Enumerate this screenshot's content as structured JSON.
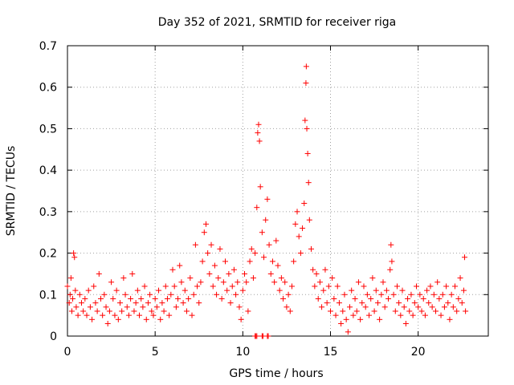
{
  "chart_data": {
    "type": "scatter",
    "title": "Day 352 of 2021, SRMTID for receiver riga",
    "xlabel": "GPS time / hours",
    "ylabel": "SRMTID / TECUs",
    "xlim": [
      0,
      24
    ],
    "ylim": [
      0,
      0.7
    ],
    "xticks": [
      0,
      5,
      10,
      15,
      20
    ],
    "yticks": [
      0,
      0.1,
      0.2,
      0.3,
      0.4,
      0.5,
      0.6,
      0.7
    ],
    "xtick_labels": [
      "0",
      "5",
      "10",
      "15",
      "20"
    ],
    "ytick_labels": [
      "0",
      "0.1",
      "0.2",
      "0.3",
      "0.4",
      "0.5",
      "0.6",
      "0.7"
    ],
    "grid": true,
    "marker": "+",
    "color": "#ff0000",
    "series": [
      {
        "name": "SRMTID",
        "points": [
          [
            0.0,
            0.12
          ],
          [
            0.1,
            0.08
          ],
          [
            0.15,
            0.1
          ],
          [
            0.2,
            0.14
          ],
          [
            0.25,
            0.06
          ],
          [
            0.3,
            0.09
          ],
          [
            0.35,
            0.2
          ],
          [
            0.4,
            0.19
          ],
          [
            0.45,
            0.11
          ],
          [
            0.5,
            0.07
          ],
          [
            0.6,
            0.05
          ],
          [
            0.7,
            0.1
          ],
          [
            0.8,
            0.08
          ],
          [
            0.9,
            0.06
          ],
          [
            1.0,
            0.09
          ],
          [
            1.1,
            0.05
          ],
          [
            1.2,
            0.11
          ],
          [
            1.3,
            0.07
          ],
          [
            1.4,
            0.04
          ],
          [
            1.5,
            0.12
          ],
          [
            1.6,
            0.08
          ],
          [
            1.7,
            0.06
          ],
          [
            1.8,
            0.15
          ],
          [
            1.9,
            0.09
          ],
          [
            2.0,
            0.05
          ],
          [
            2.1,
            0.1
          ],
          [
            2.2,
            0.07
          ],
          [
            2.3,
            0.03
          ],
          [
            2.4,
            0.06
          ],
          [
            2.5,
            0.13
          ],
          [
            2.6,
            0.09
          ],
          [
            2.7,
            0.05
          ],
          [
            2.8,
            0.11
          ],
          [
            2.9,
            0.04
          ],
          [
            3.0,
            0.08
          ],
          [
            3.1,
            0.06
          ],
          [
            3.2,
            0.14
          ],
          [
            3.3,
            0.1
          ],
          [
            3.4,
            0.07
          ],
          [
            3.5,
            0.05
          ],
          [
            3.6,
            0.09
          ],
          [
            3.7,
            0.15
          ],
          [
            3.8,
            0.06
          ],
          [
            3.9,
            0.08
          ],
          [
            4.0,
            0.11
          ],
          [
            4.1,
            0.05
          ],
          [
            4.2,
            0.09
          ],
          [
            4.3,
            0.07
          ],
          [
            4.4,
            0.12
          ],
          [
            4.5,
            0.04
          ],
          [
            4.6,
            0.08
          ],
          [
            4.7,
            0.1
          ],
          [
            4.8,
            0.06
          ],
          [
            4.9,
            0.05
          ],
          [
            5.0,
            0.09
          ],
          [
            5.1,
            0.07
          ],
          [
            5.2,
            0.11
          ],
          [
            5.3,
            0.04
          ],
          [
            5.4,
            0.08
          ],
          [
            5.5,
            0.06
          ],
          [
            5.6,
            0.12
          ],
          [
            5.7,
            0.09
          ],
          [
            5.8,
            0.05
          ],
          [
            5.9,
            0.1
          ],
          [
            6.0,
            0.16
          ],
          [
            6.1,
            0.12
          ],
          [
            6.2,
            0.07
          ],
          [
            6.3,
            0.09
          ],
          [
            6.4,
            0.17
          ],
          [
            6.5,
            0.13
          ],
          [
            6.6,
            0.08
          ],
          [
            6.7,
            0.11
          ],
          [
            6.8,
            0.06
          ],
          [
            6.9,
            0.09
          ],
          [
            7.0,
            0.14
          ],
          [
            7.1,
            0.05
          ],
          [
            7.2,
            0.1
          ],
          [
            7.3,
            0.22
          ],
          [
            7.4,
            0.12
          ],
          [
            7.5,
            0.08
          ],
          [
            7.6,
            0.13
          ],
          [
            7.7,
            0.18
          ],
          [
            7.8,
            0.25
          ],
          [
            7.9,
            0.27
          ],
          [
            8.0,
            0.2
          ],
          [
            8.1,
            0.15
          ],
          [
            8.2,
            0.22
          ],
          [
            8.3,
            0.12
          ],
          [
            8.4,
            0.17
          ],
          [
            8.5,
            0.1
          ],
          [
            8.6,
            0.14
          ],
          [
            8.7,
            0.21
          ],
          [
            8.8,
            0.09
          ],
          [
            8.9,
            0.13
          ],
          [
            9.0,
            0.18
          ],
          [
            9.1,
            0.11
          ],
          [
            9.2,
            0.15
          ],
          [
            9.3,
            0.08
          ],
          [
            9.4,
            0.12
          ],
          [
            9.5,
            0.16
          ],
          [
            9.6,
            0.1
          ],
          [
            9.7,
            0.13
          ],
          [
            9.8,
            0.07
          ],
          [
            9.9,
            0.04
          ],
          [
            10.0,
            0.11
          ],
          [
            10.1,
            0.15
          ],
          [
            10.2,
            0.13
          ],
          [
            10.3,
            0.06
          ],
          [
            10.4,
            0.18
          ],
          [
            10.5,
            0.21
          ],
          [
            10.6,
            0.14
          ],
          [
            10.7,
            0.2
          ],
          [
            10.8,
            0.31
          ],
          [
            10.85,
            0.49
          ],
          [
            10.9,
            0.51
          ],
          [
            10.95,
            0.47
          ],
          [
            11.0,
            0.36
          ],
          [
            11.1,
            0.25
          ],
          [
            11.2,
            0.19
          ],
          [
            11.3,
            0.28
          ],
          [
            11.4,
            0.33
          ],
          [
            11.5,
            0.22
          ],
          [
            11.6,
            0.15
          ],
          [
            11.7,
            0.18
          ],
          [
            11.8,
            0.13
          ],
          [
            11.9,
            0.23
          ],
          [
            12.0,
            0.17
          ],
          [
            12.1,
            0.11
          ],
          [
            12.2,
            0.14
          ],
          [
            12.3,
            0.09
          ],
          [
            12.4,
            0.13
          ],
          [
            12.5,
            0.07
          ],
          [
            12.6,
            0.1
          ],
          [
            12.7,
            0.06
          ],
          [
            12.8,
            0.12
          ],
          [
            12.9,
            0.18
          ],
          [
            13.0,
            0.27
          ],
          [
            13.1,
            0.3
          ],
          [
            13.2,
            0.24
          ],
          [
            13.3,
            0.2
          ],
          [
            13.4,
            0.26
          ],
          [
            13.5,
            0.32
          ],
          [
            13.55,
            0.52
          ],
          [
            13.6,
            0.61
          ],
          [
            13.62,
            0.65
          ],
          [
            13.65,
            0.5
          ],
          [
            13.7,
            0.44
          ],
          [
            13.75,
            0.37
          ],
          [
            13.8,
            0.28
          ],
          [
            13.9,
            0.21
          ],
          [
            14.0,
            0.16
          ],
          [
            14.1,
            0.12
          ],
          [
            14.2,
            0.15
          ],
          [
            14.3,
            0.09
          ],
          [
            14.4,
            0.13
          ],
          [
            14.5,
            0.07
          ],
          [
            14.6,
            0.11
          ],
          [
            14.7,
            0.16
          ],
          [
            14.8,
            0.08
          ],
          [
            14.9,
            0.12
          ],
          [
            15.0,
            0.06
          ],
          [
            15.1,
            0.14
          ],
          [
            15.2,
            0.09
          ],
          [
            15.3,
            0.05
          ],
          [
            15.4,
            0.12
          ],
          [
            15.5,
            0.08
          ],
          [
            15.6,
            0.03
          ],
          [
            15.7,
            0.06
          ],
          [
            15.8,
            0.1
          ],
          [
            15.9,
            0.04
          ],
          [
            16.0,
            0.01
          ],
          [
            16.1,
            0.07
          ],
          [
            16.2,
            0.11
          ],
          [
            16.3,
            0.05
          ],
          [
            16.4,
            0.09
          ],
          [
            16.5,
            0.06
          ],
          [
            16.6,
            0.13
          ],
          [
            16.7,
            0.04
          ],
          [
            16.8,
            0.08
          ],
          [
            16.9,
            0.12
          ],
          [
            17.0,
            0.07
          ],
          [
            17.1,
            0.1
          ],
          [
            17.2,
            0.05
          ],
          [
            17.3,
            0.09
          ],
          [
            17.4,
            0.14
          ],
          [
            17.5,
            0.06
          ],
          [
            17.6,
            0.11
          ],
          [
            17.7,
            0.08
          ],
          [
            17.8,
            0.04
          ],
          [
            17.9,
            0.1
          ],
          [
            18.0,
            0.13
          ],
          [
            18.1,
            0.07
          ],
          [
            18.2,
            0.11
          ],
          [
            18.3,
            0.09
          ],
          [
            18.4,
            0.16
          ],
          [
            18.45,
            0.22
          ],
          [
            18.5,
            0.18
          ],
          [
            18.6,
            0.1
          ],
          [
            18.7,
            0.06
          ],
          [
            18.8,
            0.12
          ],
          [
            18.9,
            0.08
          ],
          [
            19.0,
            0.05
          ],
          [
            19.1,
            0.11
          ],
          [
            19.2,
            0.07
          ],
          [
            19.3,
            0.03
          ],
          [
            19.4,
            0.09
          ],
          [
            19.5,
            0.06
          ],
          [
            19.6,
            0.1
          ],
          [
            19.7,
            0.05
          ],
          [
            19.8,
            0.08
          ],
          [
            19.9,
            0.12
          ],
          [
            20.0,
            0.07
          ],
          [
            20.1,
            0.1
          ],
          [
            20.2,
            0.06
          ],
          [
            20.3,
            0.09
          ],
          [
            20.4,
            0.05
          ],
          [
            20.5,
            0.11
          ],
          [
            20.6,
            0.08
          ],
          [
            20.7,
            0.12
          ],
          [
            20.8,
            0.07
          ],
          [
            20.9,
            0.1
          ],
          [
            21.0,
            0.06
          ],
          [
            21.1,
            0.13
          ],
          [
            21.2,
            0.09
          ],
          [
            21.3,
            0.05
          ],
          [
            21.4,
            0.1
          ],
          [
            21.5,
            0.07
          ],
          [
            21.6,
            0.12
          ],
          [
            21.7,
            0.08
          ],
          [
            21.8,
            0.04
          ],
          [
            21.9,
            0.1
          ],
          [
            22.0,
            0.07
          ],
          [
            22.1,
            0.12
          ],
          [
            22.2,
            0.06
          ],
          [
            22.3,
            0.09
          ],
          [
            22.4,
            0.14
          ],
          [
            22.5,
            0.08
          ],
          [
            22.6,
            0.11
          ],
          [
            22.65,
            0.19
          ],
          [
            22.7,
            0.06
          ]
        ],
        "zero_cluster": [
          10.7,
          10.75,
          10.8,
          11.1,
          11.15,
          11.4,
          11.45
        ]
      }
    ]
  }
}
